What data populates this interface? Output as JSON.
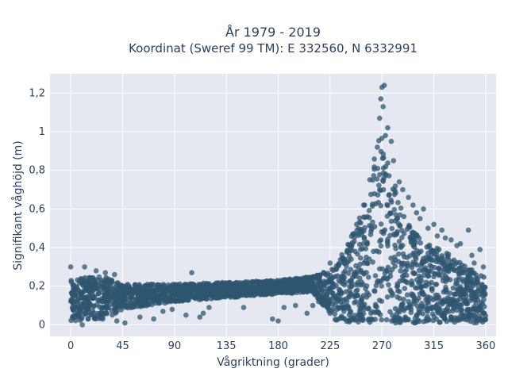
{
  "chart_data": {
    "type": "scatter",
    "title_line1": "År 1979 - 2019",
    "title_line2": "Koordinat (Sweref 99 TM): E 332560, N 6332991",
    "xlabel": "Vågriktning (grader)",
    "ylabel": "Signifikant våghöjd (m)",
    "xlim": [
      -18,
      369
    ],
    "ylim": [
      -0.06,
      1.3
    ],
    "x_ticks": [
      0,
      45,
      90,
      135,
      180,
      225,
      270,
      315,
      360
    ],
    "x_tick_labels": [
      "0",
      "45",
      "90",
      "135",
      "180",
      "225",
      "270",
      "315",
      "360"
    ],
    "y_ticks": [
      0,
      0.2,
      0.4,
      0.6,
      0.8,
      1.0,
      1.2
    ],
    "y_tick_labels": [
      "0",
      "0,2",
      "0,4",
      "0,6",
      "0,8",
      "1",
      "1,2"
    ],
    "grid": true,
    "marker_color": "#2f5570",
    "plot_bg": "#e5e8f0",
    "band_profile": [
      {
        "x": 0,
        "low": 0.02,
        "high": 0.24
      },
      {
        "x": 30,
        "low": 0.03,
        "high": 0.25
      },
      {
        "x": 45,
        "low": 0.08,
        "high": 0.21
      },
      {
        "x": 90,
        "low": 0.12,
        "high": 0.21
      },
      {
        "x": 135,
        "low": 0.14,
        "high": 0.22
      },
      {
        "x": 180,
        "low": 0.16,
        "high": 0.23
      },
      {
        "x": 210,
        "low": 0.17,
        "high": 0.25
      },
      {
        "x": 230,
        "low": 0.02,
        "high": 0.3
      },
      {
        "x": 250,
        "low": 0.01,
        "high": 0.55
      },
      {
        "x": 262,
        "low": 0.01,
        "high": 0.85
      },
      {
        "x": 270,
        "low": 0.01,
        "high": 1.05
      },
      {
        "x": 278,
        "low": 0.01,
        "high": 0.8
      },
      {
        "x": 290,
        "low": 0.01,
        "high": 0.55
      },
      {
        "x": 310,
        "low": 0.01,
        "high": 0.42
      },
      {
        "x": 330,
        "low": 0.01,
        "high": 0.36
      },
      {
        "x": 350,
        "low": 0.01,
        "high": 0.28
      },
      {
        "x": 360,
        "low": 0.01,
        "high": 0.25
      }
    ],
    "outliers": [
      [
        0,
        0.3
      ],
      [
        12,
        0.3
      ],
      [
        22,
        0.28
      ],
      [
        30,
        0.27
      ],
      [
        38,
        0.26
      ],
      [
        10,
        0.0
      ],
      [
        40,
        0.02
      ],
      [
        47,
        0.01
      ],
      [
        60,
        0.04
      ],
      [
        72,
        0.03
      ],
      [
        80,
        0.07
      ],
      [
        88,
        0.08
      ],
      [
        100,
        0.05
      ],
      [
        105,
        0.27
      ],
      [
        112,
        0.04
      ],
      [
        115,
        0.06
      ],
      [
        120,
        0.09
      ],
      [
        150,
        0.09
      ],
      [
        175,
        0.03
      ],
      [
        180,
        0.02
      ],
      [
        185,
        0.09
      ],
      [
        195,
        0.1
      ],
      [
        205,
        0.06
      ],
      [
        210,
        0.1
      ],
      [
        215,
        0.12
      ],
      [
        225,
        0.32
      ],
      [
        240,
        0.38
      ],
      [
        248,
        0.52
      ],
      [
        255,
        0.62
      ],
      [
        262,
        0.75
      ],
      [
        266,
        0.92
      ],
      [
        268,
        1.07
      ],
      [
        270,
        1.23
      ],
      [
        272,
        1.24
      ],
      [
        269,
        1.17
      ],
      [
        271,
        1.13
      ],
      [
        275,
        1.02
      ],
      [
        273,
        0.98
      ],
      [
        278,
        0.95
      ],
      [
        280,
        0.85
      ],
      [
        285,
        0.74
      ],
      [
        288,
        0.7
      ],
      [
        293,
        0.66
      ],
      [
        297,
        0.62
      ],
      [
        300,
        0.58
      ],
      [
        303,
        0.55
      ],
      [
        306,
        0.6
      ],
      [
        310,
        0.5
      ],
      [
        315,
        0.52
      ],
      [
        318,
        0.46
      ],
      [
        322,
        0.49
      ],
      [
        325,
        0.45
      ],
      [
        330,
        0.44
      ],
      [
        335,
        0.41
      ],
      [
        338,
        0.42
      ],
      [
        345,
        0.49
      ],
      [
        348,
        0.36
      ],
      [
        350,
        0.32
      ],
      [
        355,
        0.39
      ],
      [
        358,
        0.3
      ],
      [
        340,
        0.28
      ],
      [
        300,
        0.05
      ],
      [
        330,
        0.04
      ],
      [
        355,
        0.03
      ]
    ]
  }
}
